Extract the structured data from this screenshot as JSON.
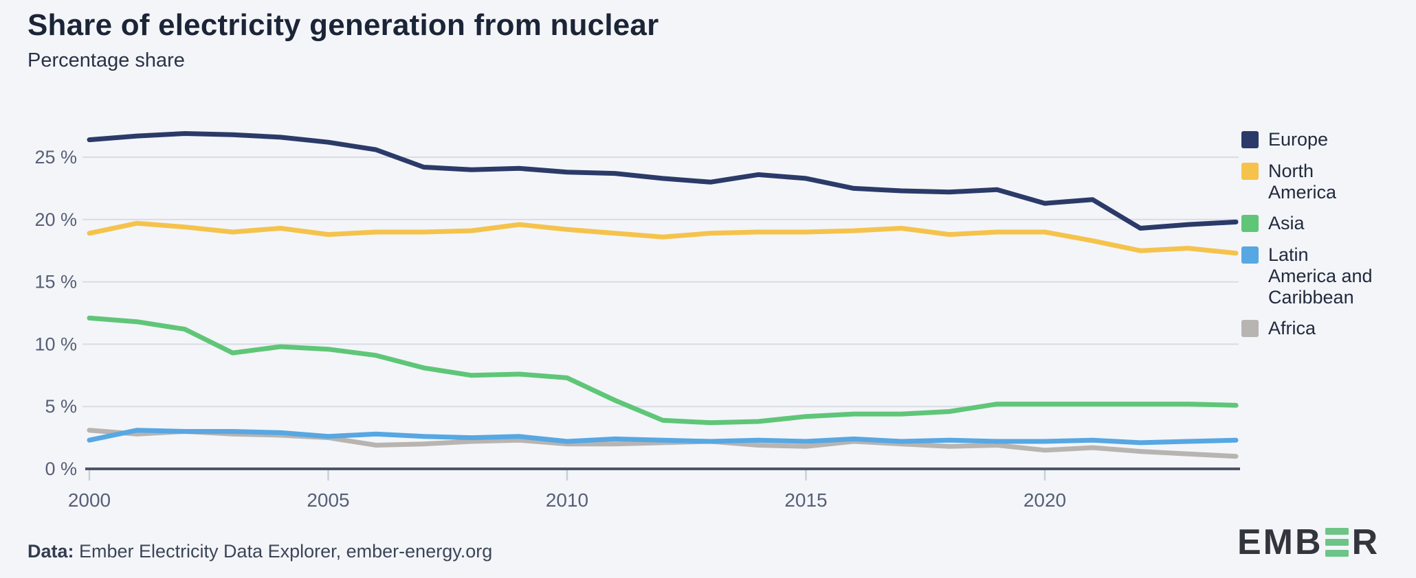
{
  "header": {
    "title": "Share of electricity generation from nuclear",
    "subtitle": "Percentage share"
  },
  "chart_data": {
    "type": "line",
    "title": "Share of electricity generation from nuclear",
    "ylabel": "Percentage share",
    "xlabel": "",
    "x": [
      2000,
      2001,
      2002,
      2003,
      2004,
      2005,
      2006,
      2007,
      2008,
      2009,
      2010,
      2011,
      2012,
      2013,
      2014,
      2015,
      2016,
      2017,
      2018,
      2019,
      2020,
      2021,
      2022,
      2023,
      2024
    ],
    "series": [
      {
        "name": "Europe",
        "color": "#2b3a68",
        "values": [
          26.4,
          26.7,
          26.9,
          26.8,
          26.6,
          26.2,
          25.6,
          24.2,
          24.0,
          24.1,
          23.8,
          23.7,
          23.3,
          23.0,
          23.6,
          23.3,
          22.5,
          22.3,
          22.2,
          22.4,
          21.3,
          21.6,
          19.3,
          19.6,
          19.8
        ]
      },
      {
        "name": "North America",
        "color": "#f5c34c",
        "values": [
          18.9,
          19.7,
          19.4,
          19.0,
          19.3,
          18.8,
          19.0,
          19.0,
          19.1,
          19.6,
          19.2,
          18.9,
          18.6,
          18.9,
          19.0,
          19.0,
          19.1,
          19.3,
          18.8,
          19.0,
          19.0,
          18.3,
          17.5,
          17.7,
          17.3
        ]
      },
      {
        "name": "Asia",
        "color": "#5fc678",
        "values": [
          12.1,
          11.8,
          11.2,
          9.3,
          9.8,
          9.6,
          9.1,
          8.1,
          7.5,
          7.6,
          7.3,
          5.5,
          3.9,
          3.7,
          3.8,
          4.2,
          4.4,
          4.4,
          4.6,
          5.2,
          5.2,
          5.2,
          5.2,
          5.2,
          5.1
        ]
      },
      {
        "name": "Latin America and Caribbean",
        "color": "#57a7e3",
        "values": [
          2.3,
          3.1,
          3.0,
          3.0,
          2.9,
          2.6,
          2.8,
          2.6,
          2.5,
          2.6,
          2.2,
          2.4,
          2.3,
          2.2,
          2.3,
          2.2,
          2.4,
          2.2,
          2.3,
          2.2,
          2.2,
          2.3,
          2.1,
          2.2,
          2.3
        ]
      },
      {
        "name": "Africa",
        "color": "#b8b4b1",
        "values": [
          3.1,
          2.8,
          3.0,
          2.8,
          2.7,
          2.5,
          1.9,
          2.0,
          2.2,
          2.3,
          2.0,
          2.0,
          2.1,
          2.2,
          1.9,
          1.8,
          2.2,
          2.0,
          1.8,
          1.9,
          1.5,
          1.7,
          1.4,
          1.2,
          1.0
        ]
      }
    ],
    "x_ticks": [
      2000,
      2005,
      2010,
      2015,
      2020
    ],
    "y_ticks": [
      0,
      5,
      10,
      15,
      20,
      25
    ],
    "y_tick_suffix": " %",
    "xlim": [
      2000,
      2024
    ],
    "ylim": [
      0,
      29.9
    ],
    "grid": "horizontal",
    "legend_position": "right"
  },
  "footer": {
    "label": "Data:",
    "source": " Ember Electricity Data Explorer, ember-energy.org",
    "logo": {
      "prefix": "EMB",
      "suffix": "R",
      "name": "EMBER"
    }
  },
  "colors": {
    "background": "#f3f5f9",
    "title_text": "#1c2437",
    "axis_text": "#565f74",
    "gridline": "#d9dce4",
    "axis_line": "#4d5568",
    "tick_mark": "#c9ced8",
    "legend_text": "#222a3d",
    "logo_dark": "#32363c",
    "logo_green": "#6ec487"
  }
}
